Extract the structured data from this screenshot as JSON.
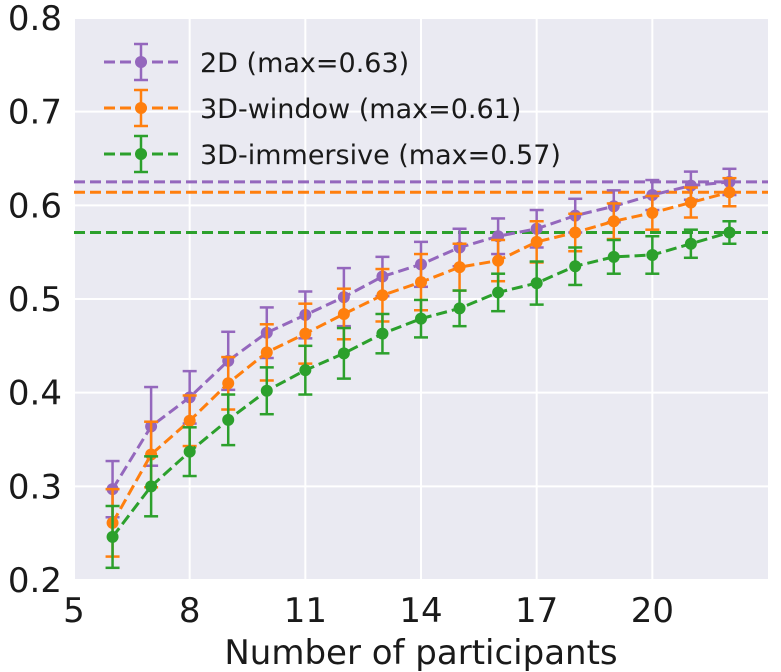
{
  "chart_data": {
    "type": "line",
    "title": "",
    "xlabel": "Number of participants",
    "ylabel": "",
    "xlim": [
      5,
      23
    ],
    "ylim": [
      0.2,
      0.8
    ],
    "xticks": [
      5,
      8,
      11,
      14,
      17,
      20
    ],
    "xtick_labels": [
      "5",
      "8",
      "11",
      "14",
      "17",
      "20"
    ],
    "yticks": [
      0.2,
      0.3,
      0.4,
      0.5,
      0.6,
      0.7,
      0.8
    ],
    "ytick_labels": [
      "0.2",
      "0.3",
      "0.4",
      "0.5",
      "0.6",
      "0.7",
      "0.8"
    ],
    "grid": true,
    "legend_position": "top-left",
    "x": [
      6,
      7,
      8,
      9,
      10,
      11,
      12,
      13,
      14,
      15,
      16,
      17,
      18,
      19,
      20,
      21,
      22
    ],
    "series": [
      {
        "name": "2D (max=0.63)",
        "color": "#9467bd",
        "max_line": 0.625,
        "values": [
          0.297,
          0.364,
          0.395,
          0.434,
          0.464,
          0.483,
          0.502,
          0.524,
          0.537,
          0.555,
          0.567,
          0.575,
          0.589,
          0.599,
          0.611,
          0.621,
          0.625
        ],
        "error": [
          0.03,
          0.042,
          0.028,
          0.031,
          0.027,
          0.025,
          0.031,
          0.021,
          0.024,
          0.02,
          0.019,
          0.02,
          0.018,
          0.017,
          0.016,
          0.015,
          0.014
        ]
      },
      {
        "name": "3D-window (max=0.61)",
        "color": "#ff7f0e",
        "max_line": 0.614,
        "values": [
          0.261,
          0.334,
          0.37,
          0.41,
          0.443,
          0.463,
          0.484,
          0.504,
          0.518,
          0.534,
          0.541,
          0.561,
          0.571,
          0.583,
          0.592,
          0.603,
          0.614
        ],
        "error": [
          0.036,
          0.035,
          0.027,
          0.028,
          0.03,
          0.032,
          0.027,
          0.028,
          0.03,
          0.025,
          0.022,
          0.022,
          0.02,
          0.019,
          0.018,
          0.016,
          0.015
        ]
      },
      {
        "name": "3D-immersive (max=0.57)",
        "color": "#2ca02c",
        "max_line": 0.571,
        "values": [
          0.246,
          0.3,
          0.337,
          0.371,
          0.402,
          0.424,
          0.442,
          0.463,
          0.479,
          0.49,
          0.507,
          0.517,
          0.535,
          0.545,
          0.547,
          0.559,
          0.571
        ],
        "error": [
          0.033,
          0.032,
          0.026,
          0.027,
          0.025,
          0.026,
          0.027,
          0.021,
          0.02,
          0.019,
          0.02,
          0.023,
          0.02,
          0.018,
          0.02,
          0.015,
          0.012
        ]
      }
    ]
  }
}
